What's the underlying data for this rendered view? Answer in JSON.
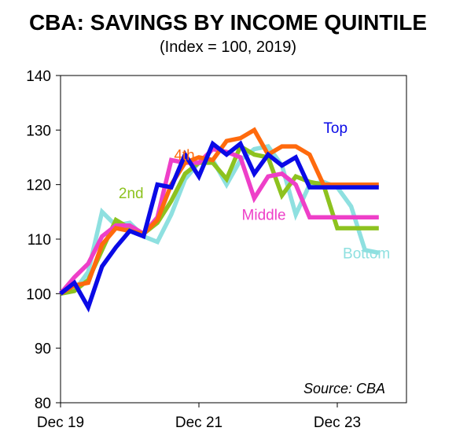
{
  "chart_data": {
    "type": "line",
    "title": "CBA: SAVINGS BY INCOME QUINTILE",
    "subtitle": "(Index = 100, 2019)",
    "source": "Source: CBA",
    "ylim": [
      80,
      140
    ],
    "yticks": [
      80,
      90,
      100,
      110,
      120,
      130,
      140
    ],
    "xlim": [
      0,
      25
    ],
    "xticks": [
      {
        "x": 0,
        "label": "Dec 19"
      },
      {
        "x": 10,
        "label": "Dec 21"
      },
      {
        "x": 20,
        "label": "Dec 23"
      }
    ],
    "grid": false,
    "series": [
      {
        "name": "Bottom",
        "color": "#8EE0E0",
        "label_at": [
          20.4,
          106.5
        ],
        "x": [
          0,
          1,
          2,
          3,
          4,
          5,
          6,
          7,
          8,
          9,
          10,
          11,
          12,
          13,
          14,
          15,
          16,
          17,
          18,
          19,
          20,
          21,
          22,
          23
        ],
        "values": [
          100.0,
          100.5,
          104.0,
          115.0,
          112.5,
          113.0,
          110.5,
          109.5,
          114.5,
          121.0,
          124.0,
          124.5,
          120.0,
          124.5,
          126.5,
          127.0,
          123.5,
          114.5,
          120.0,
          120.5,
          119.5,
          116.0,
          108.0,
          107.5
        ]
      },
      {
        "name": "2nd",
        "color": "#8DC21F",
        "label_at": [
          4.2,
          117.5
        ],
        "x": [
          0,
          1,
          2,
          3,
          4,
          5,
          6,
          7,
          8,
          9,
          10,
          11,
          12,
          13,
          14,
          15,
          16,
          17,
          18,
          19,
          20,
          21,
          22,
          23
        ],
        "values": [
          100.0,
          100.5,
          102.5,
          108.0,
          113.5,
          112.0,
          111.0,
          113.0,
          117.0,
          122.0,
          124.0,
          124.0,
          121.0,
          127.0,
          125.5,
          125.0,
          118.0,
          121.5,
          120.5,
          120.0,
          112.0,
          112.0,
          112.0,
          112.0
        ]
      },
      {
        "name": "Middle",
        "color": "#EE3FC8",
        "label_at": [
          13.1,
          113.5
        ],
        "x": [
          0,
          1,
          2,
          3,
          4,
          5,
          6,
          7,
          8,
          9,
          10,
          11,
          12,
          13,
          14,
          15,
          16,
          17,
          18,
          19,
          20,
          21,
          22,
          23
        ],
        "values": [
          100.0,
          103.0,
          105.5,
          110.5,
          112.5,
          112.5,
          111.0,
          114.0,
          124.5,
          124.0,
          124.0,
          126.5,
          126.0,
          125.0,
          117.5,
          121.5,
          122.0,
          120.0,
          114.0,
          114.0,
          114.0,
          114.0,
          114.0,
          114.0
        ]
      },
      {
        "name": "4th",
        "color": "#FF6A0D",
        "label_at": [
          8.2,
          124.5
        ],
        "x": [
          0,
          1,
          2,
          3,
          4,
          5,
          6,
          7,
          8,
          9,
          10,
          11,
          12,
          13,
          14,
          15,
          16,
          17,
          18,
          19,
          20,
          21,
          22,
          23
        ],
        "values": [
          100.0,
          101.5,
          102.0,
          109.0,
          112.0,
          111.5,
          111.0,
          113.5,
          120.0,
          124.0,
          125.0,
          124.5,
          128.0,
          128.5,
          130.0,
          125.5,
          127.0,
          127.0,
          125.5,
          120.0,
          120.0,
          120.0,
          120.0,
          120.0
        ]
      },
      {
        "name": "Top",
        "color": "#0A0AE6",
        "label_at": [
          19.0,
          129.5
        ],
        "x": [
          0,
          1,
          2,
          3,
          4,
          5,
          6,
          7,
          8,
          9,
          10,
          11,
          12,
          13,
          14,
          15,
          16,
          17,
          18,
          19,
          20,
          21,
          22,
          23
        ],
        "values": [
          100.0,
          102.0,
          97.5,
          105.0,
          108.5,
          111.5,
          110.5,
          120.0,
          119.5,
          125.5,
          121.5,
          127.5,
          125.5,
          127.5,
          122.0,
          125.5,
          123.5,
          125.0,
          119.5,
          119.5,
          119.5,
          119.5,
          119.5,
          119.5
        ]
      }
    ]
  }
}
